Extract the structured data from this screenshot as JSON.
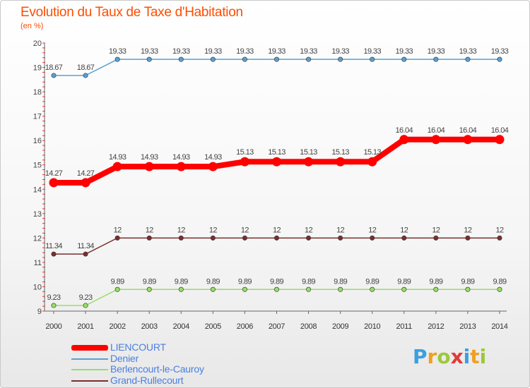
{
  "header": {
    "title": "Evolution du Taux de Taxe d'Habitation",
    "subtitle": "(en %)"
  },
  "logo": {
    "text": "Proxiti",
    "letter_colors": [
      "#3aa0e0",
      "#f0a020",
      "#9cc83a",
      "#e03a3a",
      "#3aa0e0",
      "#f0a020",
      "#9cc83a"
    ]
  },
  "colors": {
    "accent": "#ff4d00",
    "legend_text": "#4a7fe0",
    "axis_tick": "#e63a3a"
  },
  "chart_data": {
    "type": "line",
    "title": "Evolution du Taux de Taxe d'Habitation",
    "ylabel": "(en %)",
    "xlabel": "",
    "x": [
      "2000",
      "2001",
      "2002",
      "2003",
      "2004",
      "2005",
      "2006",
      "2007",
      "2008",
      "2009",
      "2010",
      "2011",
      "2012",
      "2013",
      "2014"
    ],
    "ylim": [
      9,
      20
    ],
    "yticks": [
      9,
      10,
      11,
      12,
      13,
      14,
      15,
      16,
      17,
      18,
      19,
      20
    ],
    "grid": false,
    "legend_position": "bottom-left",
    "series": [
      {
        "name": "LIENCOURT",
        "color": "#ff0000",
        "bold": true,
        "values": [
          14.27,
          14.27,
          14.93,
          14.93,
          14.93,
          14.93,
          15.13,
          15.13,
          15.13,
          15.13,
          15.13,
          16.04,
          16.04,
          16.04,
          16.04
        ],
        "labels": [
          "14.27",
          "14.27",
          "14.93",
          "14.93",
          "14.93",
          "14.93",
          "15.13",
          "15.13",
          "15.13",
          "15.13",
          "15.13",
          "16.04",
          "16.04",
          "16.04",
          "16.04"
        ]
      },
      {
        "name": "Denier",
        "color": "#5c9fd0",
        "bold": false,
        "values": [
          18.67,
          18.67,
          19.33,
          19.33,
          19.33,
          19.33,
          19.33,
          19.33,
          19.33,
          19.33,
          19.33,
          19.33,
          19.33,
          19.33,
          19.33
        ],
        "labels": [
          "18.67",
          "18.67",
          "19.33",
          "19.33",
          "19.33",
          "19.33",
          "19.33",
          "19.33",
          "19.33",
          "19.33",
          "19.33",
          "19.33",
          "19.33",
          "19.33",
          "19.33"
        ]
      },
      {
        "name": "Berlencourt-le-Cauroy",
        "color": "#99dd66",
        "bold": false,
        "values": [
          9.23,
          9.23,
          9.89,
          9.89,
          9.89,
          9.89,
          9.89,
          9.89,
          9.89,
          9.89,
          9.89,
          9.89,
          9.89,
          9.89,
          9.89
        ],
        "labels": [
          "9.23",
          "9.23",
          "9.89",
          "9.89",
          "9.89",
          "9.89",
          "9.89",
          "9.89",
          "9.89",
          "9.89",
          "9.89",
          "9.89",
          "9.89",
          "9.89",
          "9.89"
        ]
      },
      {
        "name": "Grand-Rullecourt",
        "color": "#7a2e2e",
        "bold": false,
        "values": [
          11.34,
          11.34,
          12,
          12,
          12,
          12,
          12,
          12,
          12,
          12,
          12,
          12,
          12,
          12,
          12
        ],
        "labels": [
          "11.34",
          "11.34",
          "12",
          "12",
          "12",
          "12",
          "12",
          "12",
          "12",
          "12",
          "12",
          "12",
          "12",
          "12",
          "12"
        ]
      }
    ]
  }
}
